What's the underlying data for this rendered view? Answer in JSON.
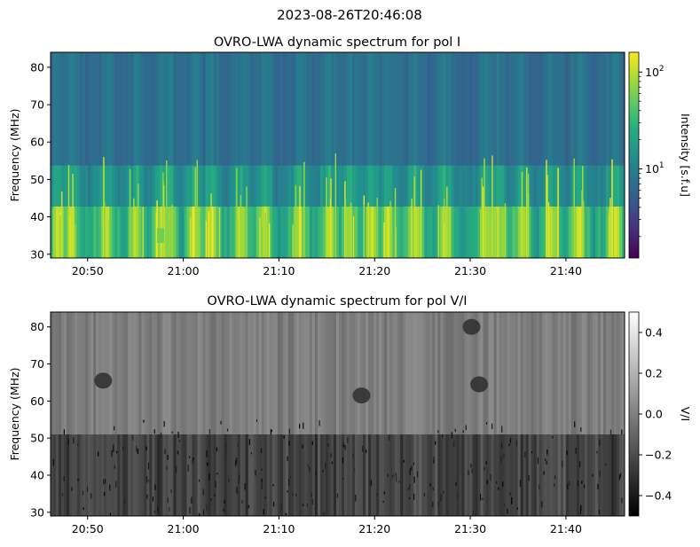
{
  "suptitle": "2023-08-26T20:46:08",
  "chart_data": [
    {
      "type": "heatmap",
      "title": "OVRO-LWA dynamic spectrum for pol I",
      "ylabel": "Frequency (MHz)",
      "xlabel": "",
      "x_range": [
        "20:46:08",
        "21:46:08"
      ],
      "xticks": [
        "20:50",
        "21:00",
        "21:10",
        "21:20",
        "21:30",
        "21:40"
      ],
      "xtick_minutes": [
        3.87,
        13.87,
        23.87,
        33.87,
        43.87,
        53.87
      ],
      "ylim": [
        29,
        84
      ],
      "yticks": [
        30,
        40,
        50,
        60,
        70,
        80
      ],
      "colormap": "viridis",
      "colorbar": {
        "label": "Intensity [s.f.u]",
        "scale": "log",
        "range": [
          1.2,
          160
        ],
        "major_ticks": [
          10,
          100
        ],
        "major_tick_labels": [
          "10",
          "10"
        ],
        "major_tick_exponents": [
          "1",
          "2"
        ],
        "minor_ticks": [
          2,
          3,
          4,
          5,
          6,
          7,
          8,
          9,
          20,
          30,
          40,
          50,
          60,
          70,
          80,
          90
        ]
      },
      "colors": [
        "#440154",
        "#3b528b",
        "#21908d",
        "#5dc963",
        "#fde725"
      ],
      "burst_times_min": [
        0.8,
        2.1,
        5.7,
        8.9,
        11.6,
        12.3,
        15.0,
        16.9,
        19.8,
        22.4,
        25.9,
        29.1,
        31.2,
        33.5,
        35.3,
        38.1,
        41.2,
        45.6,
        46.8,
        49.3,
        52.4,
        55.2,
        58.9
      ],
      "bright_patch": {
        "time_min": 11.5,
        "freq_mhz": [
          33,
          37
        ]
      }
    },
    {
      "type": "heatmap",
      "title": "OVRO-LWA dynamic spectrum for pol V/I",
      "ylabel": "Frequency (MHz)",
      "xlabel": "",
      "x_range": [
        "20:46:08",
        "21:46:08"
      ],
      "xticks": [
        "20:50",
        "21:00",
        "21:10",
        "21:20",
        "21:30",
        "21:40"
      ],
      "xtick_minutes": [
        3.87,
        13.87,
        23.87,
        33.87,
        43.87,
        53.87
      ],
      "ylim": [
        29,
        84
      ],
      "yticks": [
        30,
        40,
        50,
        60,
        70,
        80
      ],
      "colormap": "gray",
      "colorbar": {
        "label": "V/I",
        "scale": "linear",
        "range": [
          -0.5,
          0.5
        ],
        "ticks": [
          0.4,
          0.2,
          0.0,
          -0.2,
          -0.4
        ],
        "tick_labels": [
          "0.4",
          "0.2",
          "0.0",
          "−0.2",
          "−0.4"
        ]
      },
      "colors": [
        "#000000",
        "#7f7f7f",
        "#ffffff"
      ],
      "dark_blobs": [
        {
          "time_min": 5.5,
          "freq_mhz": 65.5
        },
        {
          "time_min": 44.8,
          "freq_mhz": 64.5
        },
        {
          "time_min": 44.0,
          "freq_mhz": 80.0
        },
        {
          "time_min": 32.5,
          "freq_mhz": 61.5
        }
      ]
    }
  ]
}
